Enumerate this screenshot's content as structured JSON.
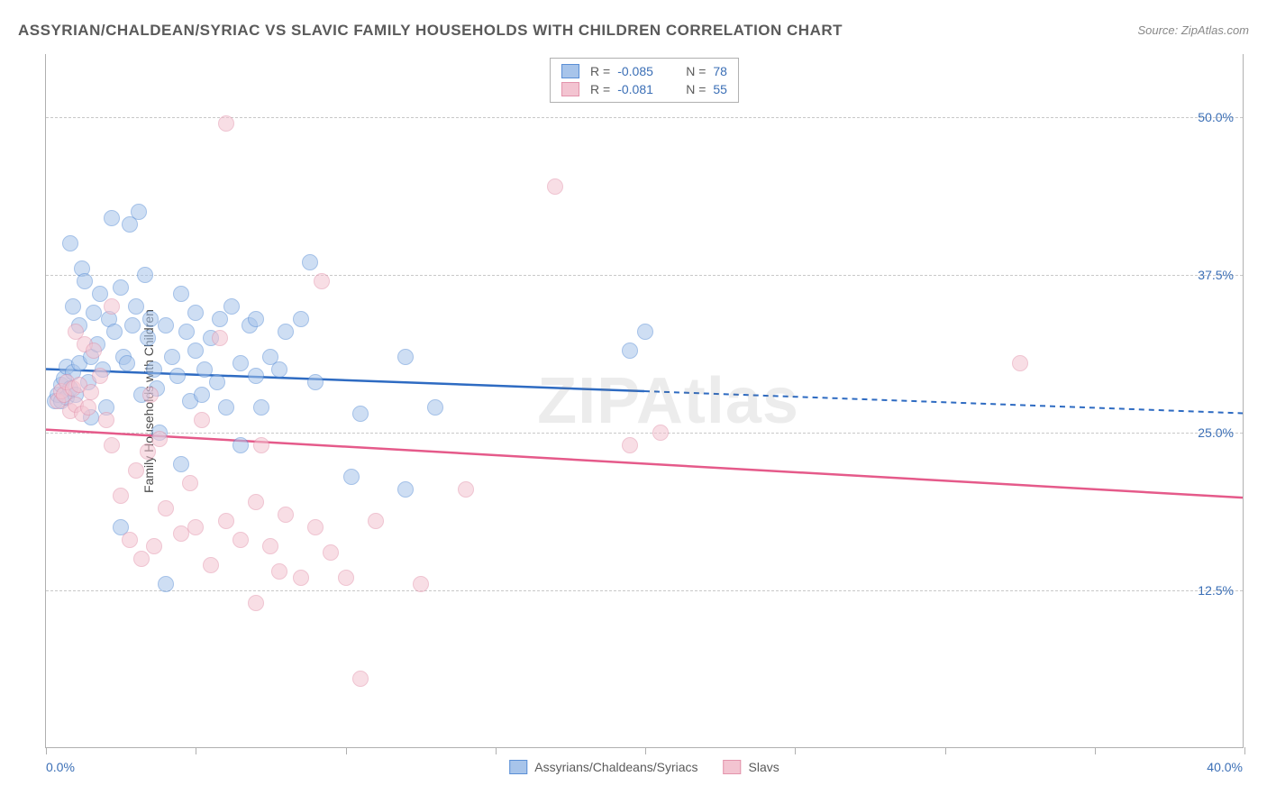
{
  "title": "ASSYRIAN/CHALDEAN/SYRIAC VS SLAVIC FAMILY HOUSEHOLDS WITH CHILDREN CORRELATION CHART",
  "source": "Source: ZipAtlas.com",
  "watermark": "ZIPAtlas",
  "ylabel": "Family Households with Children",
  "xlim": [
    0,
    40
  ],
  "ylim": [
    0,
    55
  ],
  "xtick_positions": [
    0,
    5,
    10,
    15,
    20,
    25,
    30,
    35,
    40
  ],
  "ytick_labels": [
    {
      "value": 12.5,
      "label": "12.5%"
    },
    {
      "value": 25.0,
      "label": "25.0%"
    },
    {
      "value": 37.5,
      "label": "37.5%"
    },
    {
      "value": 50.0,
      "label": "50.0%"
    }
  ],
  "xlabel_min": "0.0%",
  "xlabel_max": "40.0%",
  "grid_color": "#c8c8c8",
  "border_color": "#b0b0b0",
  "background_color": "#ffffff",
  "point_radius": 9,
  "point_opacity": 0.55,
  "series": [
    {
      "name": "Assyrians/Chaldeans/Syriacs",
      "color_fill": "#a7c4ea",
      "color_stroke": "#5a8fd6",
      "trend_color": "#2e6bc2",
      "R": "-0.085",
      "N": "78",
      "trend": {
        "x1": 0,
        "y1": 30.0,
        "x2": 40,
        "y2": 26.5,
        "solid_to_x": 20
      },
      "points": [
        [
          0.3,
          27.5
        ],
        [
          0.4,
          28
        ],
        [
          0.5,
          28.8
        ],
        [
          0.5,
          27.5
        ],
        [
          0.6,
          29.3
        ],
        [
          0.7,
          27.8
        ],
        [
          0.7,
          30.2
        ],
        [
          0.8,
          28.5
        ],
        [
          0.9,
          29.8
        ],
        [
          0.9,
          35
        ],
        [
          1.0,
          28
        ],
        [
          1.1,
          30.5
        ],
        [
          1.1,
          33.5
        ],
        [
          1.2,
          38
        ],
        [
          1.3,
          37
        ],
        [
          1.4,
          29
        ],
        [
          1.5,
          31
        ],
        [
          1.6,
          34.5
        ],
        [
          1.7,
          32
        ],
        [
          1.8,
          36
        ],
        [
          1.9,
          30
        ],
        [
          2.0,
          27
        ],
        [
          2.1,
          34
        ],
        [
          2.2,
          42
        ],
        [
          2.3,
          33
        ],
        [
          2.5,
          36.5
        ],
        [
          2.5,
          17.5
        ],
        [
          2.6,
          31
        ],
        [
          2.7,
          30.5
        ],
        [
          2.8,
          41.5
        ],
        [
          2.9,
          33.5
        ],
        [
          3.0,
          35
        ],
        [
          3.1,
          42.5
        ],
        [
          3.2,
          28
        ],
        [
          3.3,
          37.5
        ],
        [
          3.4,
          32.5
        ],
        [
          3.5,
          34
        ],
        [
          3.6,
          30
        ],
        [
          3.7,
          28.5
        ],
        [
          3.8,
          25
        ],
        [
          4.0,
          33.5
        ],
        [
          4.0,
          13
        ],
        [
          4.2,
          31
        ],
        [
          4.4,
          29.5
        ],
        [
          4.5,
          36
        ],
        [
          4.5,
          22.5
        ],
        [
          4.7,
          33
        ],
        [
          4.8,
          27.5
        ],
        [
          5.0,
          34.5
        ],
        [
          5.0,
          31.5
        ],
        [
          5.2,
          28
        ],
        [
          5.3,
          30
        ],
        [
          5.5,
          32.5
        ],
        [
          5.7,
          29
        ],
        [
          5.8,
          34
        ],
        [
          6.0,
          27
        ],
        [
          6.2,
          35
        ],
        [
          6.5,
          30.5
        ],
        [
          6.5,
          24
        ],
        [
          6.8,
          33.5
        ],
        [
          7.0,
          29.5
        ],
        [
          7.0,
          34
        ],
        [
          7.2,
          27
        ],
        [
          7.5,
          31
        ],
        [
          7.8,
          30
        ],
        [
          8.0,
          33
        ],
        [
          8.5,
          34
        ],
        [
          8.8,
          38.5
        ],
        [
          9.0,
          29
        ],
        [
          10.2,
          21.5
        ],
        [
          10.5,
          26.5
        ],
        [
          12.0,
          31
        ],
        [
          12.0,
          20.5
        ],
        [
          13.0,
          27
        ],
        [
          19.5,
          31.5
        ],
        [
          20.0,
          33
        ],
        [
          0.8,
          40
        ],
        [
          1.5,
          26.2
        ]
      ]
    },
    {
      "name": "Slavs",
      "color_fill": "#f3c4d1",
      "color_stroke": "#e394ac",
      "trend_color": "#e55a8a",
      "R": "-0.081",
      "N": "55",
      "trend": {
        "x1": 0,
        "y1": 25.2,
        "x2": 40,
        "y2": 19.8,
        "solid_to_x": 40
      },
      "points": [
        [
          0.4,
          27.5
        ],
        [
          0.5,
          28.3
        ],
        [
          0.6,
          28
        ],
        [
          0.7,
          29
        ],
        [
          0.8,
          26.7
        ],
        [
          0.9,
          28.5
        ],
        [
          1.0,
          27.2
        ],
        [
          1.1,
          28.8
        ],
        [
          1.2,
          26.5
        ],
        [
          1.3,
          32
        ],
        [
          1.4,
          27
        ],
        [
          1.5,
          28.2
        ],
        [
          1.6,
          31.5
        ],
        [
          1.8,
          29.5
        ],
        [
          2.0,
          26
        ],
        [
          2.2,
          24
        ],
        [
          2.2,
          35
        ],
        [
          2.5,
          20
        ],
        [
          2.8,
          16.5
        ],
        [
          3.0,
          22
        ],
        [
          3.2,
          15
        ],
        [
          3.4,
          23.5
        ],
        [
          3.5,
          28
        ],
        [
          3.6,
          16
        ],
        [
          3.8,
          24.5
        ],
        [
          4.0,
          19
        ],
        [
          4.5,
          17
        ],
        [
          4.8,
          21
        ],
        [
          5.0,
          17.5
        ],
        [
          5.2,
          26
        ],
        [
          5.5,
          14.5
        ],
        [
          5.8,
          32.5
        ],
        [
          6.0,
          18
        ],
        [
          6.0,
          49.5
        ],
        [
          6.5,
          16.5
        ],
        [
          7.0,
          11.5
        ],
        [
          7.0,
          19.5
        ],
        [
          7.2,
          24
        ],
        [
          7.5,
          16
        ],
        [
          7.8,
          14
        ],
        [
          8.0,
          18.5
        ],
        [
          8.5,
          13.5
        ],
        [
          9.0,
          17.5
        ],
        [
          9.2,
          37
        ],
        [
          9.5,
          15.5
        ],
        [
          10.0,
          13.5
        ],
        [
          10.5,
          5.5
        ],
        [
          11.0,
          18
        ],
        [
          12.5,
          13
        ],
        [
          14.0,
          20.5
        ],
        [
          17.0,
          44.5
        ],
        [
          19.5,
          24
        ],
        [
          20.5,
          25
        ],
        [
          32.5,
          30.5
        ],
        [
          1.0,
          33
        ]
      ]
    }
  ],
  "legend_bottom": [
    {
      "label": "Assyrians/Chaldeans/Syriacs",
      "fill": "#a7c4ea",
      "stroke": "#5a8fd6"
    },
    {
      "label": "Slavs",
      "fill": "#f3c4d1",
      "stroke": "#e394ac"
    }
  ]
}
